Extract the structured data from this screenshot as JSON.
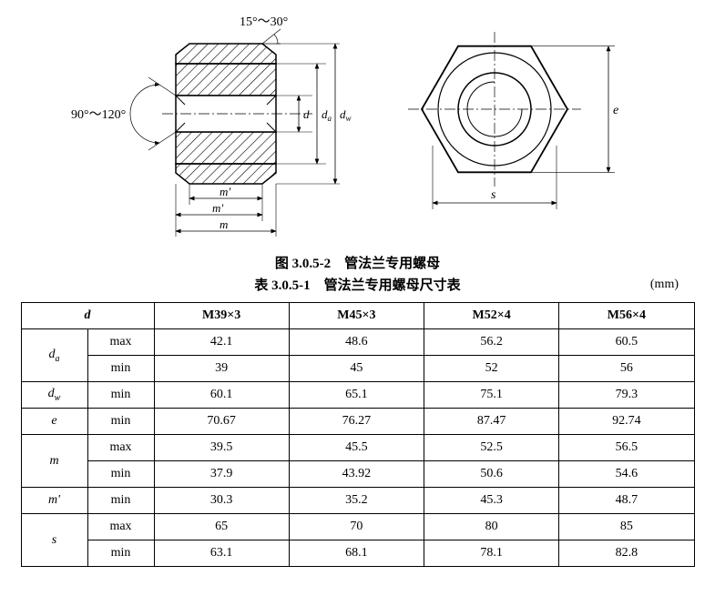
{
  "figure_caption": "图 3.0.5-2　管法兰专用螺母",
  "table_caption": "表 3.0.5-1　管法兰专用螺母尺寸表",
  "unit_label": "(mm)",
  "angle_top": "15°～30°",
  "angle_left": "90°～120°",
  "dim_m1": "m'",
  "dim_m2": "m'",
  "dim_m3": "m",
  "dim_d1": "d",
  "dim_d2": "dₐ",
  "dim_d3": "d_w",
  "dim_e": "e",
  "dim_s": "s",
  "table": {
    "header_d": "d",
    "columns": [
      "M39×3",
      "M45×3",
      "M52×4",
      "M56×4"
    ],
    "rows": [
      {
        "label": "d",
        "labelSub": "a",
        "sub": "max",
        "cells": [
          "42.1",
          "48.6",
          "56.2",
          "60.5"
        ],
        "span": 2
      },
      {
        "sub": "min",
        "cells": [
          "39",
          "45",
          "52",
          "56"
        ]
      },
      {
        "label": "d",
        "labelSub": "w",
        "sub": "min",
        "cells": [
          "60.1",
          "65.1",
          "75.1",
          "79.3"
        ],
        "span": 1
      },
      {
        "label": "e",
        "sub": "min",
        "cells": [
          "70.67",
          "76.27",
          "87.47",
          "92.74"
        ],
        "span": 1
      },
      {
        "label": "m",
        "sub": "max",
        "cells": [
          "39.5",
          "45.5",
          "52.5",
          "56.5"
        ],
        "span": 2
      },
      {
        "sub": "min",
        "cells": [
          "37.9",
          "43.92",
          "50.6",
          "54.6"
        ]
      },
      {
        "label": "m'",
        "sub": "min",
        "cells": [
          "30.3",
          "35.2",
          "45.3",
          "48.7"
        ],
        "span": 1
      },
      {
        "label": "s",
        "sub": "max",
        "cells": [
          "65",
          "70",
          "80",
          "85"
        ],
        "span": 2
      },
      {
        "sub": "min",
        "cells": [
          "63.1",
          "68.1",
          "78.1",
          "82.8"
        ]
      }
    ]
  },
  "colors": {
    "line": "#000000",
    "hatch": "#000000",
    "bg": "#ffffff"
  }
}
